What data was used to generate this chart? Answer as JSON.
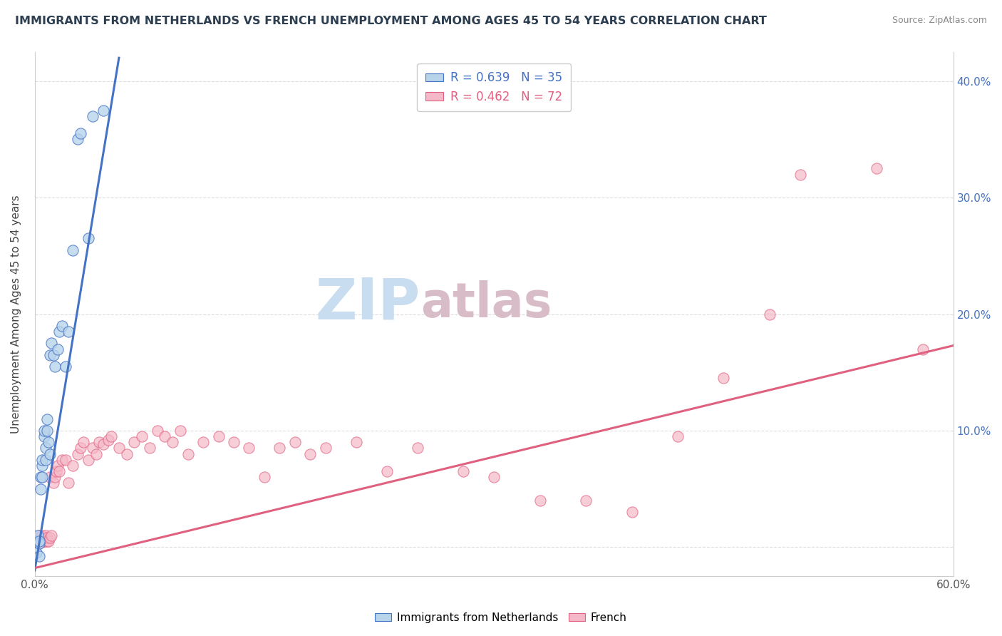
{
  "title": "IMMIGRANTS FROM NETHERLANDS VS FRENCH UNEMPLOYMENT AMONG AGES 45 TO 54 YEARS CORRELATION CHART",
  "source": "Source: ZipAtlas.com",
  "ylabel": "Unemployment Among Ages 45 to 54 years",
  "xlim": [
    0,
    0.6
  ],
  "ylim": [
    -0.025,
    0.425
  ],
  "xticks": [
    0.0,
    0.1,
    0.2,
    0.3,
    0.4,
    0.5,
    0.6
  ],
  "xtick_labels": [
    "0.0%",
    "",
    "",
    "",
    "",
    "",
    "60.0%"
  ],
  "yticks": [
    0.0,
    0.1,
    0.2,
    0.3,
    0.4
  ],
  "ytick_labels_right": [
    "",
    "10.0%",
    "20.0%",
    "30.0%",
    "40.0%"
  ],
  "netherlands_R": 0.639,
  "netherlands_N": 35,
  "french_R": 0.462,
  "french_N": 72,
  "netherlands_color": "#b8d4eb",
  "french_color": "#f5b8c8",
  "netherlands_line_color": "#4472c4",
  "french_line_color": "#e06080",
  "netherlands_x": [
    0.001,
    0.001,
    0.002,
    0.002,
    0.003,
    0.003,
    0.003,
    0.004,
    0.004,
    0.005,
    0.005,
    0.005,
    0.006,
    0.006,
    0.007,
    0.007,
    0.008,
    0.008,
    0.009,
    0.01,
    0.01,
    0.011,
    0.012,
    0.013,
    0.015,
    0.016,
    0.018,
    0.02,
    0.022,
    0.025,
    0.028,
    0.03,
    0.035,
    0.038,
    0.045
  ],
  "netherlands_y": [
    0.005,
    -0.005,
    0.005,
    0.01,
    0.003,
    -0.008,
    0.005,
    0.05,
    0.06,
    0.07,
    0.075,
    0.06,
    0.095,
    0.1,
    0.085,
    0.075,
    0.1,
    0.11,
    0.09,
    0.165,
    0.08,
    0.175,
    0.165,
    0.155,
    0.17,
    0.185,
    0.19,
    0.155,
    0.185,
    0.255,
    0.35,
    0.355,
    0.265,
    0.37,
    0.375
  ],
  "netherlands_line_x": [
    0.0,
    0.055
  ],
  "netherlands_line_y": [
    -0.02,
    0.42
  ],
  "french_x": [
    0.001,
    0.001,
    0.002,
    0.002,
    0.003,
    0.003,
    0.004,
    0.004,
    0.005,
    0.005,
    0.006,
    0.006,
    0.007,
    0.007,
    0.008,
    0.008,
    0.009,
    0.01,
    0.01,
    0.011,
    0.012,
    0.013,
    0.014,
    0.015,
    0.016,
    0.018,
    0.02,
    0.022,
    0.025,
    0.028,
    0.03,
    0.032,
    0.035,
    0.038,
    0.04,
    0.042,
    0.045,
    0.048,
    0.05,
    0.055,
    0.06,
    0.065,
    0.07,
    0.075,
    0.08,
    0.085,
    0.09,
    0.095,
    0.1,
    0.11,
    0.12,
    0.13,
    0.14,
    0.15,
    0.16,
    0.17,
    0.18,
    0.19,
    0.21,
    0.23,
    0.25,
    0.28,
    0.3,
    0.33,
    0.36,
    0.39,
    0.42,
    0.45,
    0.48,
    0.5,
    0.55,
    0.58
  ],
  "french_y": [
    0.005,
    0.008,
    0.003,
    0.008,
    0.005,
    0.01,
    0.004,
    0.008,
    0.005,
    0.01,
    0.005,
    0.008,
    0.005,
    0.01,
    0.005,
    0.008,
    0.005,
    0.06,
    0.008,
    0.01,
    0.055,
    0.06,
    0.065,
    0.07,
    0.065,
    0.075,
    0.075,
    0.055,
    0.07,
    0.08,
    0.085,
    0.09,
    0.075,
    0.085,
    0.08,
    0.09,
    0.088,
    0.092,
    0.095,
    0.085,
    0.08,
    0.09,
    0.095,
    0.085,
    0.1,
    0.095,
    0.09,
    0.1,
    0.08,
    0.09,
    0.095,
    0.09,
    0.085,
    0.06,
    0.085,
    0.09,
    0.08,
    0.085,
    0.09,
    0.065,
    0.085,
    0.065,
    0.06,
    0.04,
    0.04,
    0.03,
    0.095,
    0.145,
    0.2,
    0.32,
    0.325,
    0.17
  ],
  "french_line_x": [
    0.0,
    0.6
  ],
  "french_line_y": [
    -0.018,
    0.173
  ],
  "watermark_zip_color": "#c8ddf0",
  "watermark_atlas_color": "#d8bcc8",
  "background_color": "#ffffff",
  "grid_color": "#dddddd"
}
